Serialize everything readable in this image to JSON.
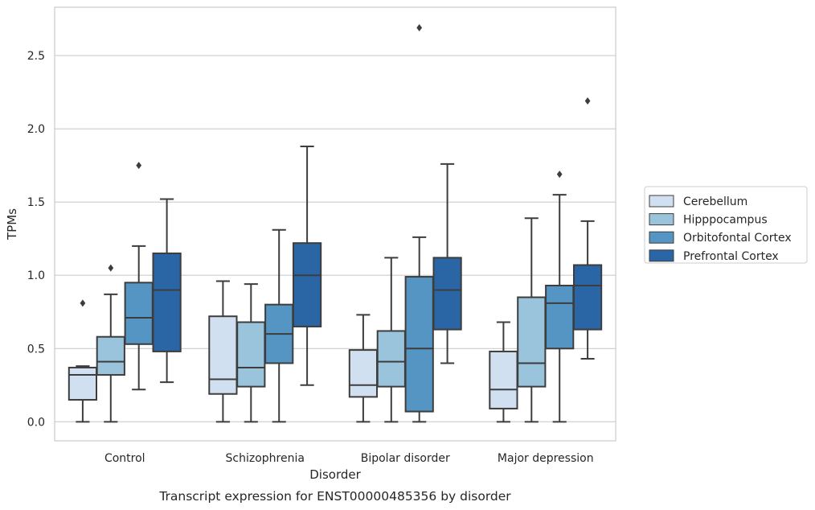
{
  "chart_data": {
    "type": "box",
    "caption": "Transcript expression for ENST00000485356 by disorder",
    "xlabel": "Disorder",
    "ylabel": "TPMs",
    "ylim": [
      -0.13,
      2.83
    ],
    "yticks": [
      0.0,
      0.5,
      1.0,
      1.5,
      2.0,
      2.5
    ],
    "ytick_labels": [
      "0.0",
      "0.5",
      "1.0",
      "1.5",
      "2.0",
      "2.5"
    ],
    "grid": "horizontal",
    "legend_position": "right",
    "categories": [
      "Control",
      "Schizophrenia",
      "Bipolar disorder",
      "Major depression"
    ],
    "series": [
      {
        "name": "Cerebellum",
        "color": "#d0e0f0",
        "boxes": [
          {
            "whisker_low": 0.0,
            "q1": 0.15,
            "median": 0.32,
            "q3": 0.37,
            "whisker_high": 0.38,
            "outliers": [
              0.81
            ]
          },
          {
            "whisker_low": 0.0,
            "q1": 0.19,
            "median": 0.29,
            "q3": 0.72,
            "whisker_high": 0.96,
            "outliers": []
          },
          {
            "whisker_low": 0.0,
            "q1": 0.17,
            "median": 0.25,
            "q3": 0.49,
            "whisker_high": 0.73,
            "outliers": []
          },
          {
            "whisker_low": 0.0,
            "q1": 0.09,
            "median": 0.22,
            "q3": 0.48,
            "whisker_high": 0.68,
            "outliers": []
          }
        ]
      },
      {
        "name": "Hipppocampus",
        "color": "#9ac3dc",
        "boxes": [
          {
            "whisker_low": 0.0,
            "q1": 0.32,
            "median": 0.41,
            "q3": 0.58,
            "whisker_high": 0.87,
            "outliers": [
              1.05
            ]
          },
          {
            "whisker_low": 0.0,
            "q1": 0.24,
            "median": 0.37,
            "q3": 0.68,
            "whisker_high": 0.94,
            "outliers": []
          },
          {
            "whisker_low": 0.0,
            "q1": 0.24,
            "median": 0.41,
            "q3": 0.62,
            "whisker_high": 1.12,
            "outliers": []
          },
          {
            "whisker_low": 0.0,
            "q1": 0.24,
            "median": 0.4,
            "q3": 0.85,
            "whisker_high": 1.39,
            "outliers": []
          }
        ]
      },
      {
        "name": "Orbitofontal Cortex",
        "color": "#5495c3",
        "boxes": [
          {
            "whisker_low": 0.22,
            "q1": 0.53,
            "median": 0.71,
            "q3": 0.95,
            "whisker_high": 1.2,
            "outliers": [
              1.75
            ]
          },
          {
            "whisker_low": 0.0,
            "q1": 0.4,
            "median": 0.6,
            "q3": 0.8,
            "whisker_high": 1.31,
            "outliers": []
          },
          {
            "whisker_low": 0.0,
            "q1": 0.07,
            "median": 0.5,
            "q3": 0.99,
            "whisker_high": 1.26,
            "outliers": [
              2.69
            ]
          },
          {
            "whisker_low": 0.0,
            "q1": 0.5,
            "median": 0.81,
            "q3": 0.93,
            "whisker_high": 1.55,
            "outliers": [
              1.69
            ]
          }
        ]
      },
      {
        "name": "Prefrontal Cortex",
        "color": "#2a66a6",
        "boxes": [
          {
            "whisker_low": 0.27,
            "q1": 0.48,
            "median": 0.9,
            "q3": 1.15,
            "whisker_high": 1.52,
            "outliers": []
          },
          {
            "whisker_low": 0.25,
            "q1": 0.65,
            "median": 1.0,
            "q3": 1.22,
            "whisker_high": 1.88,
            "outliers": []
          },
          {
            "whisker_low": 0.4,
            "q1": 0.63,
            "median": 0.9,
            "q3": 1.12,
            "whisker_high": 1.76,
            "outliers": []
          },
          {
            "whisker_low": 0.43,
            "q1": 0.63,
            "median": 0.93,
            "q3": 1.07,
            "whisker_high": 1.37,
            "outliers": [
              2.19
            ]
          }
        ]
      }
    ]
  }
}
